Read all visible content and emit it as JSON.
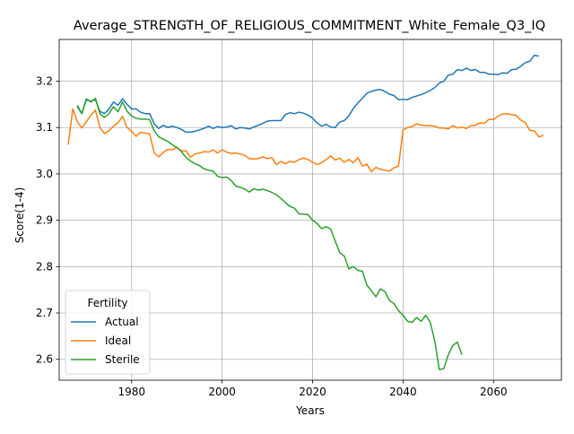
{
  "chart_data": {
    "type": "line",
    "title": "Average_STRENGTH_OF_RELIGIOUS_COMMITMENT_White_Female_Q3_IQ",
    "xlabel": "Years",
    "ylabel": "Score(1-4)",
    "xlim": [
      1964,
      2075
    ],
    "ylim": [
      2.555,
      3.29
    ],
    "x_ticks": [
      1980,
      2000,
      2020,
      2040,
      2060
    ],
    "y_ticks": [
      2.6,
      2.7,
      2.8,
      2.9,
      3.0,
      3.1,
      3.2
    ],
    "grid": true,
    "legend": {
      "title": "Fertility",
      "placement": "lower-left"
    },
    "series": [
      {
        "name": "Actual",
        "color": "#1f77b4",
        "points": [
          [
            1968,
            3.145
          ],
          [
            1969,
            3.13
          ],
          [
            1970,
            3.16
          ],
          [
            1971,
            3.157
          ],
          [
            1972,
            3.16
          ],
          [
            1973,
            3.135
          ],
          [
            1974,
            3.13
          ],
          [
            1975,
            3.14
          ],
          [
            1976,
            3.155
          ],
          [
            1977,
            3.148
          ],
          [
            1978,
            3.162
          ],
          [
            1979,
            3.15
          ],
          [
            1980,
            3.14
          ],
          [
            1981,
            3.14
          ],
          [
            1982,
            3.133
          ],
          [
            1983,
            3.13
          ],
          [
            1984,
            3.13
          ],
          [
            1985,
            3.108
          ],
          [
            1986,
            3.098
          ],
          [
            1987,
            3.105
          ],
          [
            1988,
            3.1
          ],
          [
            1989,
            3.103
          ],
          [
            1990,
            3.1
          ],
          [
            1991,
            3.096
          ],
          [
            1992,
            3.09
          ],
          [
            1993,
            3.09
          ],
          [
            1994,
            3.092
          ],
          [
            1995,
            3.095
          ],
          [
            1996,
            3.098
          ],
          [
            1997,
            3.103
          ],
          [
            1998,
            3.098
          ],
          [
            1999,
            3.102
          ],
          [
            2000,
            3.1
          ],
          [
            2001,
            3.101
          ],
          [
            2002,
            3.104
          ],
          [
            2003,
            3.097
          ],
          [
            2004,
            3.1
          ],
          [
            2005,
            3.099
          ],
          [
            2006,
            3.097
          ],
          [
            2007,
            3.101
          ],
          [
            2008,
            3.105
          ],
          [
            2009,
            3.109
          ],
          [
            2010,
            3.114
          ],
          [
            2011,
            3.115
          ],
          [
            2012,
            3.115
          ],
          [
            2013,
            3.115
          ],
          [
            2014,
            3.128
          ],
          [
            2015,
            3.132
          ],
          [
            2016,
            3.13
          ],
          [
            2017,
            3.133
          ],
          [
            2018,
            3.131
          ],
          [
            2019,
            3.127
          ],
          [
            2020,
            3.12
          ],
          [
            2021,
            3.11
          ],
          [
            2022,
            3.103
          ],
          [
            2023,
            3.107
          ],
          [
            2024,
            3.101
          ],
          [
            2025,
            3.1
          ],
          [
            2026,
            3.112
          ],
          [
            2027,
            3.115
          ],
          [
            2028,
            3.125
          ],
          [
            2029,
            3.141
          ],
          [
            2030,
            3.153
          ],
          [
            2031,
            3.163
          ],
          [
            2032,
            3.174
          ],
          [
            2033,
            3.178
          ],
          [
            2034,
            3.181
          ],
          [
            2035,
            3.182
          ],
          [
            2036,
            3.178
          ],
          [
            2037,
            3.172
          ],
          [
            2038,
            3.169
          ],
          [
            2039,
            3.16
          ],
          [
            2040,
            3.161
          ],
          [
            2041,
            3.16
          ],
          [
            2042,
            3.165
          ],
          [
            2043,
            3.168
          ],
          [
            2044,
            3.171
          ],
          [
            2045,
            3.175
          ],
          [
            2046,
            3.18
          ],
          [
            2047,
            3.186
          ],
          [
            2048,
            3.196
          ],
          [
            2049,
            3.2
          ],
          [
            2050,
            3.213
          ],
          [
            2051,
            3.215
          ],
          [
            2052,
            3.225
          ],
          [
            2053,
            3.223
          ],
          [
            2054,
            3.228
          ],
          [
            2055,
            3.223
          ],
          [
            2056,
            3.225
          ],
          [
            2057,
            3.219
          ],
          [
            2058,
            3.219
          ],
          [
            2059,
            3.215
          ],
          [
            2060,
            3.215
          ],
          [
            2061,
            3.214
          ],
          [
            2062,
            3.218
          ],
          [
            2063,
            3.217
          ],
          [
            2064,
            3.225
          ],
          [
            2065,
            3.226
          ],
          [
            2066,
            3.232
          ],
          [
            2067,
            3.24
          ],
          [
            2068,
            3.243
          ],
          [
            2069,
            3.256
          ],
          [
            2070,
            3.254
          ]
        ]
      },
      {
        "name": "Ideal",
        "color": "#ff7f0e",
        "points": [
          [
            1966,
            3.063
          ],
          [
            1967,
            3.14
          ],
          [
            1968,
            3.113
          ],
          [
            1969,
            3.099
          ],
          [
            1970,
            3.113
          ],
          [
            1971,
            3.126
          ],
          [
            1972,
            3.138
          ],
          [
            1973,
            3.1
          ],
          [
            1974,
            3.087
          ],
          [
            1975,
            3.093
          ],
          [
            1976,
            3.103
          ],
          [
            1977,
            3.11
          ],
          [
            1978,
            3.124
          ],
          [
            1979,
            3.1
          ],
          [
            1980,
            3.092
          ],
          [
            1981,
            3.081
          ],
          [
            1982,
            3.09
          ],
          [
            1983,
            3.088
          ],
          [
            1984,
            3.086
          ],
          [
            1985,
            3.045
          ],
          [
            1986,
            3.037
          ],
          [
            1987,
            3.046
          ],
          [
            1988,
            3.053
          ],
          [
            1989,
            3.052
          ],
          [
            1990,
            3.057
          ],
          [
            1991,
            3.05
          ],
          [
            1992,
            3.05
          ],
          [
            1993,
            3.036
          ],
          [
            1994,
            3.043
          ],
          [
            1995,
            3.045
          ],
          [
            1996,
            3.048
          ],
          [
            1997,
            3.047
          ],
          [
            1998,
            3.052
          ],
          [
            1999,
            3.045
          ],
          [
            2000,
            3.052
          ],
          [
            2001,
            3.047
          ],
          [
            2002,
            3.044
          ],
          [
            2003,
            3.045
          ],
          [
            2004,
            3.043
          ],
          [
            2005,
            3.04
          ],
          [
            2006,
            3.033
          ],
          [
            2007,
            3.032
          ],
          [
            2008,
            3.033
          ],
          [
            2009,
            3.037
          ],
          [
            2010,
            3.033
          ],
          [
            2011,
            3.035
          ],
          [
            2012,
            3.02
          ],
          [
            2013,
            3.027
          ],
          [
            2014,
            3.022
          ],
          [
            2015,
            3.027
          ],
          [
            2016,
            3.025
          ],
          [
            2017,
            3.031
          ],
          [
            2018,
            3.034
          ],
          [
            2019,
            3.031
          ],
          [
            2020,
            3.025
          ],
          [
            2021,
            3.02
          ],
          [
            2022,
            3.024
          ],
          [
            2023,
            3.031
          ],
          [
            2024,
            3.039
          ],
          [
            2025,
            3.03
          ],
          [
            2026,
            3.034
          ],
          [
            2027,
            3.025
          ],
          [
            2028,
            3.031
          ],
          [
            2029,
            3.024
          ],
          [
            2030,
            3.035
          ],
          [
            2031,
            3.017
          ],
          [
            2032,
            3.021
          ],
          [
            2033,
            3.005
          ],
          [
            2034,
            3.014
          ],
          [
            2035,
            3.01
          ],
          [
            2036,
            3.008
          ],
          [
            2037,
            3.006
          ],
          [
            2038,
            3.013
          ],
          [
            2039,
            3.017
          ],
          [
            2040,
            3.095
          ],
          [
            2041,
            3.1
          ],
          [
            2042,
            3.102
          ],
          [
            2043,
            3.108
          ],
          [
            2044,
            3.105
          ],
          [
            2045,
            3.104
          ],
          [
            2046,
            3.104
          ],
          [
            2047,
            3.103
          ],
          [
            2048,
            3.099
          ],
          [
            2049,
            3.099
          ],
          [
            2050,
            3.097
          ],
          [
            2051,
            3.104
          ],
          [
            2052,
            3.099
          ],
          [
            2053,
            3.101
          ],
          [
            2054,
            3.098
          ],
          [
            2055,
            3.104
          ],
          [
            2056,
            3.105
          ],
          [
            2057,
            3.11
          ],
          [
            2058,
            3.109
          ],
          [
            2059,
            3.118
          ],
          [
            2060,
            3.117
          ],
          [
            2061,
            3.125
          ],
          [
            2062,
            3.129
          ],
          [
            2063,
            3.13
          ],
          [
            2064,
            3.128
          ],
          [
            2065,
            3.126
          ],
          [
            2066,
            3.116
          ],
          [
            2067,
            3.111
          ],
          [
            2068,
            3.094
          ],
          [
            2069,
            3.093
          ],
          [
            2070,
            3.08
          ],
          [
            2071,
            3.083
          ]
        ]
      },
      {
        "name": "Sterile",
        "color": "#2ca02c",
        "points": [
          [
            1968,
            3.148
          ],
          [
            1969,
            3.13
          ],
          [
            1970,
            3.162
          ],
          [
            1971,
            3.155
          ],
          [
            1972,
            3.163
          ],
          [
            1973,
            3.13
          ],
          [
            1974,
            3.122
          ],
          [
            1975,
            3.13
          ],
          [
            1976,
            3.145
          ],
          [
            1977,
            3.134
          ],
          [
            1978,
            3.155
          ],
          [
            1979,
            3.135
          ],
          [
            1980,
            3.125
          ],
          [
            1981,
            3.12
          ],
          [
            1982,
            3.118
          ],
          [
            1983,
            3.118
          ],
          [
            1984,
            3.117
          ],
          [
            1985,
            3.093
          ],
          [
            1986,
            3.08
          ],
          [
            1987,
            3.075
          ],
          [
            1988,
            3.07
          ],
          [
            1989,
            3.063
          ],
          [
            1990,
            3.057
          ],
          [
            1991,
            3.048
          ],
          [
            1992,
            3.036
          ],
          [
            1993,
            3.028
          ],
          [
            1994,
            3.022
          ],
          [
            1995,
            3.018
          ],
          [
            1996,
            3.011
          ],
          [
            1997,
            3.008
          ],
          [
            1998,
            3.006
          ],
          [
            1999,
            2.995
          ],
          [
            2000,
            2.992
          ],
          [
            2001,
            2.993
          ],
          [
            2002,
            2.986
          ],
          [
            2003,
            2.974
          ],
          [
            2004,
            2.971
          ],
          [
            2005,
            2.967
          ],
          [
            2006,
            2.961
          ],
          [
            2007,
            2.968
          ],
          [
            2008,
            2.965
          ],
          [
            2009,
            2.967
          ],
          [
            2010,
            2.964
          ],
          [
            2011,
            2.96
          ],
          [
            2012,
            2.955
          ],
          [
            2013,
            2.947
          ],
          [
            2014,
            2.938
          ],
          [
            2015,
            2.93
          ],
          [
            2016,
            2.926
          ],
          [
            2017,
            2.914
          ],
          [
            2018,
            2.913
          ],
          [
            2019,
            2.912
          ],
          [
            2020,
            2.9
          ],
          [
            2021,
            2.893
          ],
          [
            2022,
            2.882
          ],
          [
            2023,
            2.886
          ],
          [
            2024,
            2.881
          ],
          [
            2025,
            2.855
          ],
          [
            2026,
            2.83
          ],
          [
            2027,
            2.823
          ],
          [
            2028,
            2.795
          ],
          [
            2029,
            2.8
          ],
          [
            2030,
            2.792
          ],
          [
            2031,
            2.79
          ],
          [
            2032,
            2.76
          ],
          [
            2033,
            2.748
          ],
          [
            2034,
            2.735
          ],
          [
            2035,
            2.752
          ],
          [
            2036,
            2.746
          ],
          [
            2037,
            2.727
          ],
          [
            2038,
            2.72
          ],
          [
            2039,
            2.705
          ],
          [
            2040,
            2.695
          ],
          [
            2041,
            2.682
          ],
          [
            2042,
            2.68
          ],
          [
            2043,
            2.69
          ],
          [
            2044,
            2.682
          ],
          [
            2045,
            2.695
          ],
          [
            2046,
            2.68
          ],
          [
            2047,
            2.64
          ],
          [
            2048,
            2.578
          ],
          [
            2049,
            2.58
          ],
          [
            2050,
            2.61
          ],
          [
            2051,
            2.63
          ],
          [
            2052,
            2.637
          ],
          [
            2053,
            2.61
          ]
        ]
      }
    ]
  }
}
